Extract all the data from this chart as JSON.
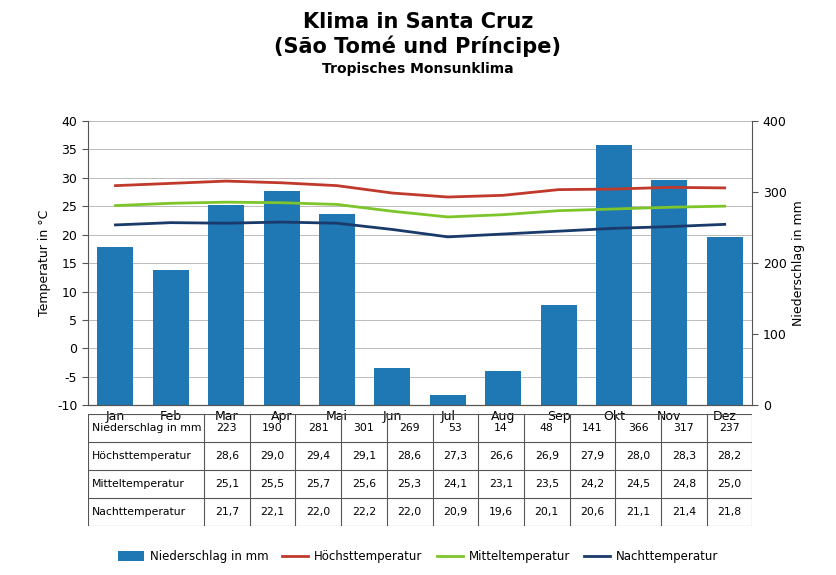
{
  "title_line1": "Klima in Santa Cruz",
  "title_line2": "(São Tomé und Príncipe)",
  "subtitle": "Tropisches Monsunklima",
  "months": [
    "Jan",
    "Feb",
    "Mar",
    "Apr",
    "Mai",
    "Jun",
    "Jul",
    "Aug",
    "Sep",
    "Okt",
    "Nov",
    "Dez"
  ],
  "niederschlag": [
    223,
    190,
    281,
    301,
    269,
    53,
    14,
    48,
    141,
    366,
    317,
    237
  ],
  "hoechst": [
    28.6,
    29.0,
    29.4,
    29.1,
    28.6,
    27.3,
    26.6,
    26.9,
    27.9,
    28.0,
    28.3,
    28.2
  ],
  "mittel": [
    25.1,
    25.5,
    25.7,
    25.6,
    25.3,
    24.1,
    23.1,
    23.5,
    24.2,
    24.5,
    24.8,
    25.0
  ],
  "nacht": [
    21.7,
    22.1,
    22.0,
    22.2,
    22.0,
    20.9,
    19.6,
    20.1,
    20.6,
    21.1,
    21.4,
    21.8
  ],
  "bar_color": "#1F77B4",
  "hoechst_color": "#C0392B",
  "mittel_color": "#7DC52A",
  "nacht_color": "#1A3A6B",
  "temp_ylim": [
    -10,
    40
  ],
  "regen_ylim": [
    0,
    400
  ],
  "temp_yticks": [
    -10,
    -5,
    0,
    5,
    10,
    15,
    20,
    25,
    30,
    35,
    40
  ],
  "regen_yticks": [
    0,
    100,
    200,
    300,
    400
  ],
  "ylabel_left": "Temperatur in °C",
  "ylabel_right": "Niederschlag in mm",
  "table_rows": [
    "Niederschlag in mm",
    "Höchsttemperatur",
    "Mitteltemperatur",
    "Nachttemperatur"
  ],
  "legend_labels": [
    "Niederschlag in mm",
    "Höchsttemperatur",
    "Mitteltemperatur",
    "Nachttemperatur"
  ],
  "background_color": "#FFFFFF",
  "grid_color": "#BBBBBB",
  "border_color": "#555555"
}
